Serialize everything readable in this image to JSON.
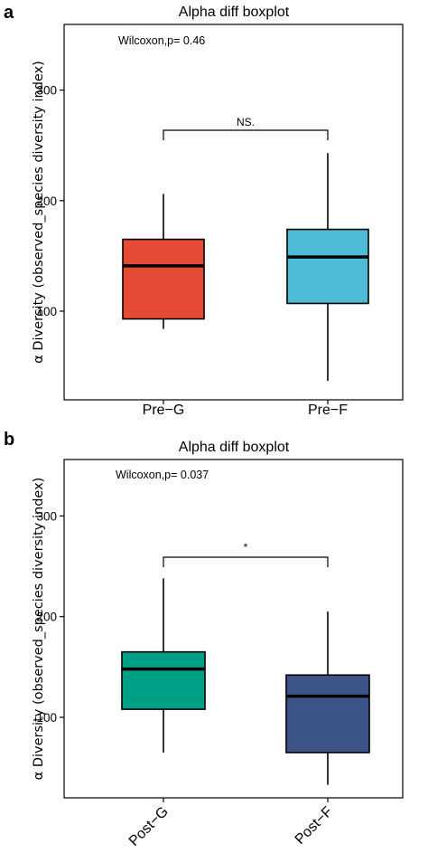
{
  "chart_data": [
    {
      "panel": "a",
      "type": "box",
      "title": "Alpha diff boxplot",
      "ylabel": "α Diversity (observed_species diversity index)",
      "annotation": "Wilcoxon,p= 0.46",
      "significance": "NS.",
      "ylim": [
        20,
        365
      ],
      "yticks": [
        100,
        200,
        300
      ],
      "rotate_x_labels": false,
      "categories": [
        "Pre−G",
        "Pre−F"
      ],
      "boxes": [
        {
          "category": "Pre−G",
          "color": "#E64B35",
          "min": 84,
          "q1": 93,
          "median": 141,
          "q3": 165,
          "max": 206
        },
        {
          "category": "Pre−F",
          "color": "#4DBBD5",
          "min": 37,
          "q1": 107,
          "median": 149,
          "q3": 174,
          "max": 243
        }
      ]
    },
    {
      "panel": "b",
      "type": "box",
      "title": "Alpha diff boxplot",
      "ylabel": "α Diversity (observed_species diversity index)",
      "annotation": "Wilcoxon,p= 0.037",
      "significance": "*",
      "ylim": [
        20,
        365
      ],
      "yticks": [
        100,
        200,
        300
      ],
      "rotate_x_labels": true,
      "categories": [
        "Post−G",
        "Post−F"
      ],
      "boxes": [
        {
          "category": "Post−G",
          "color": "#00A087",
          "min": 65,
          "q1": 108,
          "median": 148,
          "q3": 165,
          "max": 238
        },
        {
          "category": "Post−F",
          "color": "#3C5488",
          "min": 33,
          "q1": 65,
          "median": 121,
          "q3": 142,
          "max": 205
        }
      ]
    }
  ]
}
